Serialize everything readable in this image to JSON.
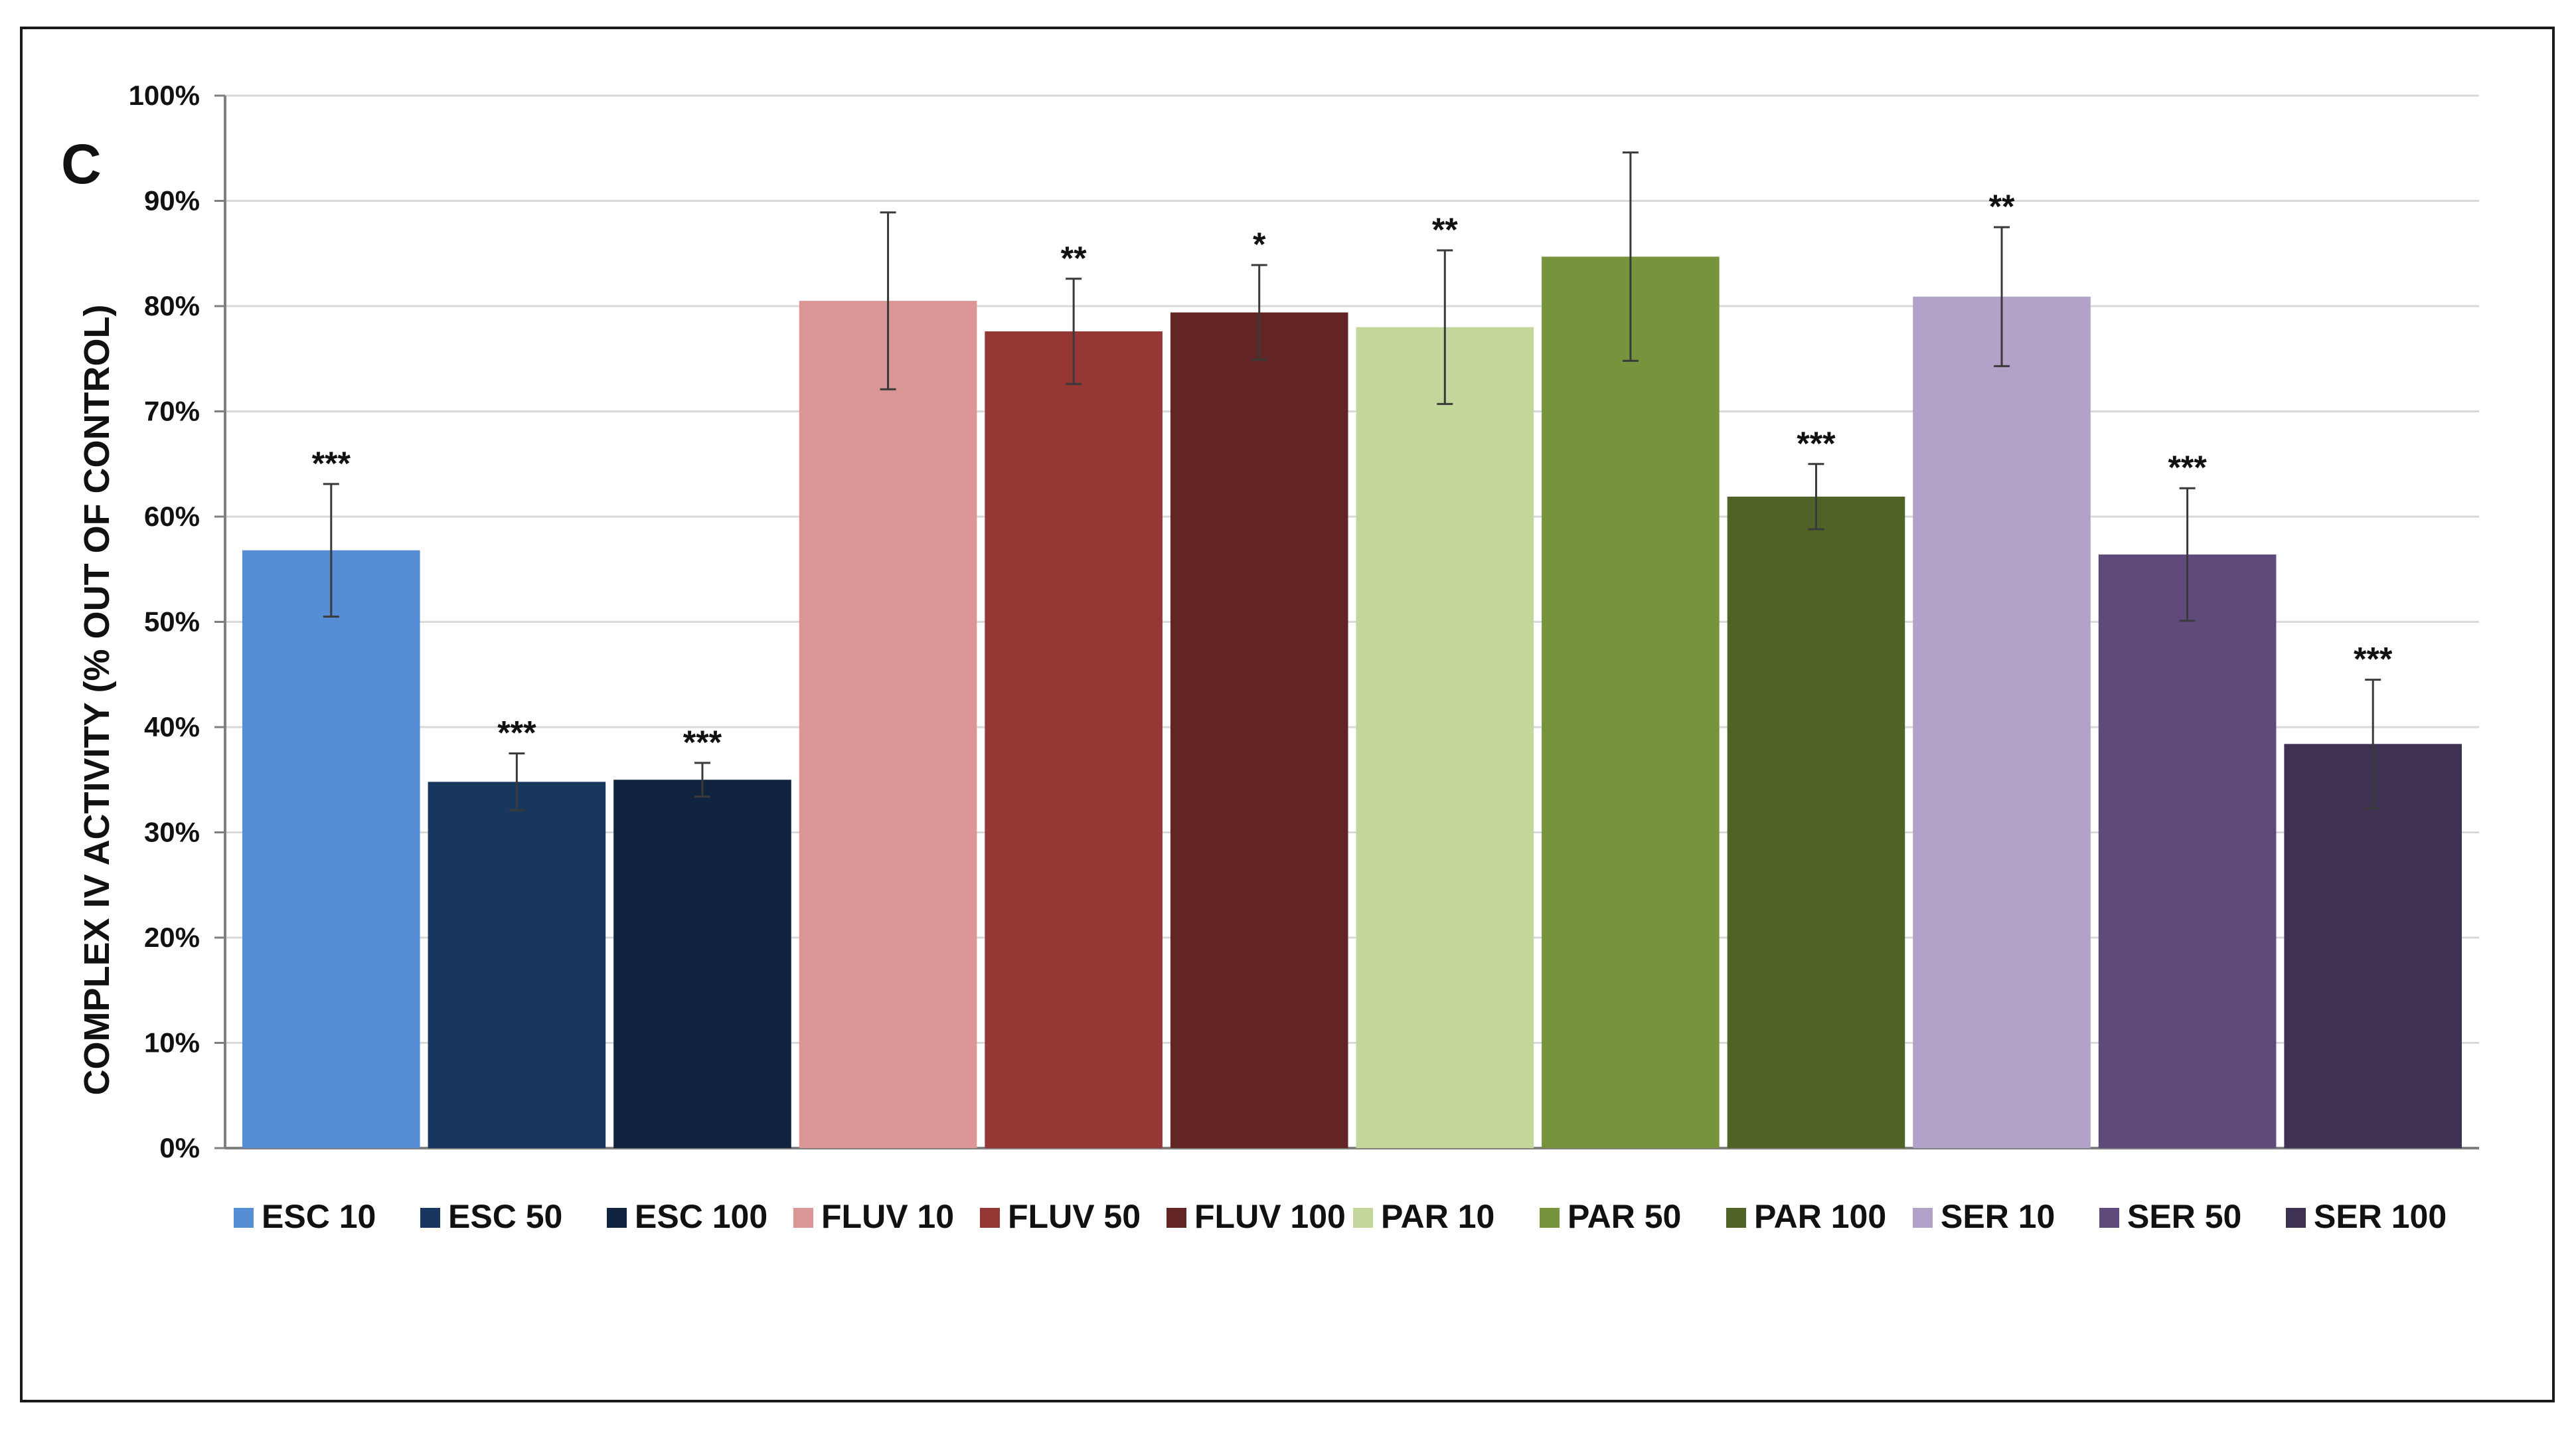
{
  "panel_label": "C",
  "chart_data": {
    "type": "bar",
    "ylabel": "COMPLEX IV ACTIVITY (% OUT OF CONTROL)",
    "xlabel": "",
    "ylim": [
      0,
      100
    ],
    "yticks": [
      "0%",
      "10%",
      "20%",
      "30%",
      "40%",
      "50%",
      "60%",
      "70%",
      "80%",
      "90%",
      "100%"
    ],
    "grid": true,
    "legend_position": "bottom",
    "categories": [
      "ESC 10",
      "ESC 50",
      "ESC 100",
      "FLUV 10",
      "FLUV 50",
      "FLUV 100",
      "PAR 10",
      "PAR 50",
      "PAR 100",
      "SER 10",
      "SER 50",
      "SER 100"
    ],
    "values": [
      56.8,
      34.8,
      35.0,
      80.5,
      77.6,
      79.4,
      78.0,
      84.7,
      61.9,
      80.9,
      56.4,
      38.4
    ],
    "error": [
      6.3,
      2.7,
      1.6,
      8.4,
      5.0,
      4.5,
      7.3,
      9.9,
      3.1,
      6.6,
      6.3,
      6.1
    ],
    "significance": [
      "***",
      "***",
      "***",
      "",
      "**",
      "*",
      "**",
      "",
      "***",
      "**",
      "***",
      "***"
    ],
    "colors": [
      "#558ed5",
      "#17375e",
      "#10243f",
      "#d99694",
      "#953735",
      "#632523",
      "#c3d69b",
      "#77933c",
      "#4f6228",
      "#b3a2c7",
      "#604a7b",
      "#3f3151"
    ]
  }
}
